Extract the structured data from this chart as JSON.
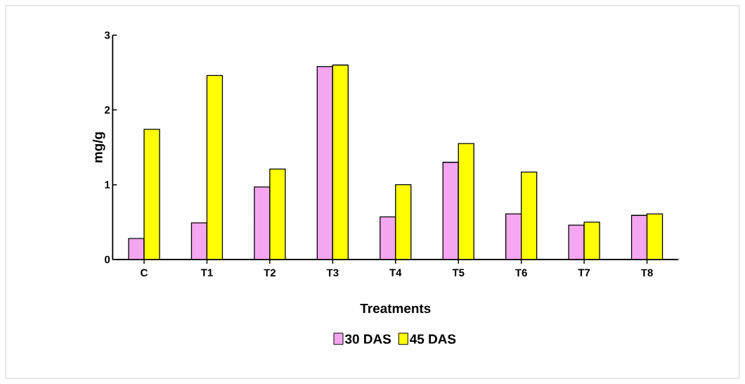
{
  "chart_data": {
    "type": "bar",
    "xlabel": "Treatments",
    "ylabel": "mg/g",
    "categories": [
      "C",
      "T1",
      "T2",
      "T3",
      "T4",
      "T5",
      "T6",
      "T7",
      "T8"
    ],
    "series": [
      {
        "name": "30 DAS",
        "color": "#f4a6f0",
        "values": [
          0.28,
          0.49,
          0.97,
          2.58,
          0.57,
          1.3,
          0.61,
          0.46,
          0.59
        ]
      },
      {
        "name": "45 DAS",
        "color": "#ffff00",
        "values": [
          1.74,
          2.46,
          1.21,
          2.6,
          1.0,
          1.55,
          1.17,
          0.5,
          0.61
        ]
      }
    ],
    "ylim": [
      0,
      3
    ],
    "yticks": [
      0,
      1,
      2,
      3
    ],
    "legend": "bottom"
  }
}
